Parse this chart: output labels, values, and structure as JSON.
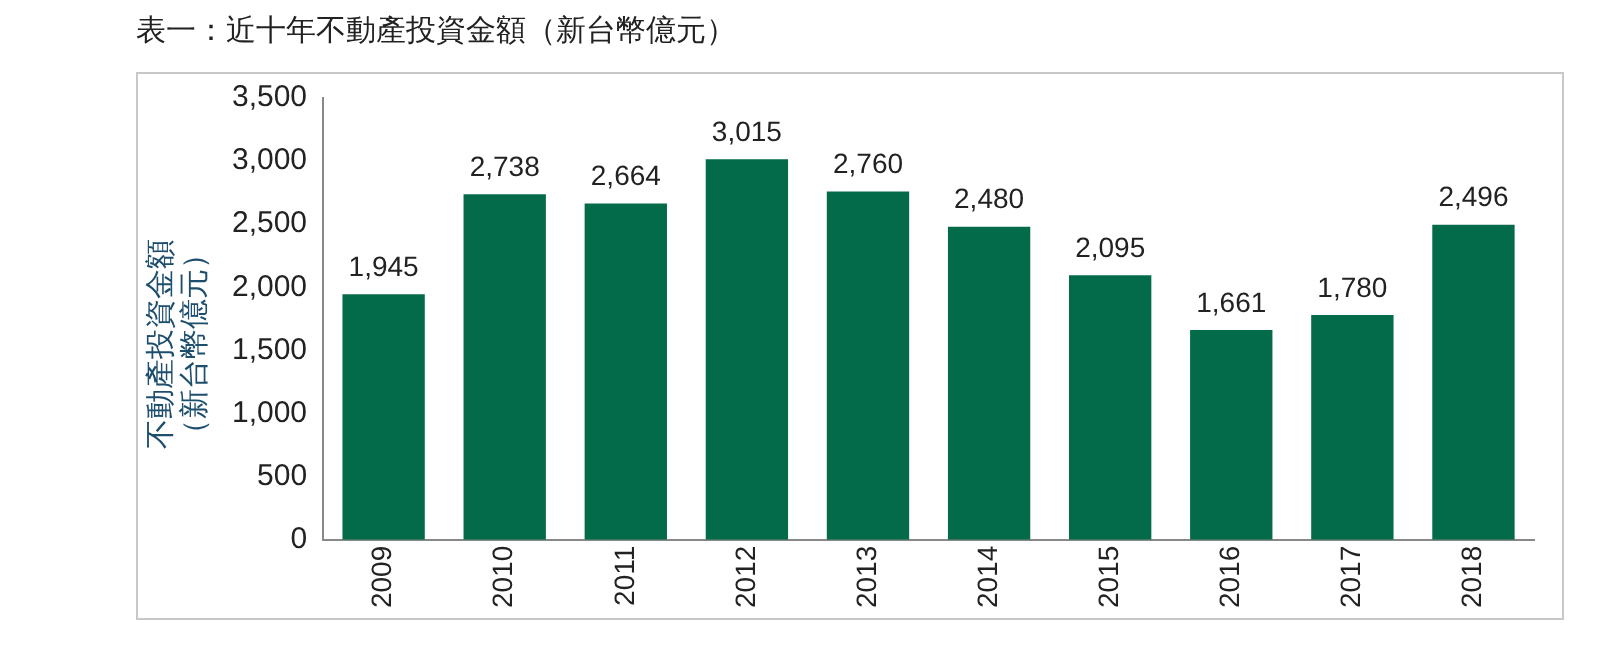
{
  "chart_data": {
    "type": "bar",
    "title": "表一：近十年不動產投資金額（新台幣億元）",
    "ylabel": "不動產投資金額（新台幣億元）",
    "categories": [
      "2009",
      "2010",
      "2011",
      "2012",
      "2013",
      "2014",
      "2015",
      "2016",
      "2017",
      "2018"
    ],
    "values": [
      1945,
      2738,
      2664,
      3015,
      2760,
      2480,
      2095,
      1661,
      1780,
      2496
    ],
    "color": "#046b4a",
    "ylim": [
      0,
      3500
    ],
    "yticks": [
      {
        "value": 0,
        "label": "0"
      },
      {
        "value": 500,
        "label": "500"
      },
      {
        "value": 1000,
        "label": "1,000"
      },
      {
        "value": 1500,
        "label": "1,500"
      },
      {
        "value": 2000,
        "label": "2,000"
      },
      {
        "value": 2500,
        "label": "2,500"
      },
      {
        "value": 3000,
        "label": "3,000"
      },
      {
        "value": 3500,
        "label": "3,500"
      }
    ],
    "value_labels": [
      "1,945",
      "2,738",
      "2,664",
      "3,015",
      "2,760",
      "2,480",
      "2,095",
      "1,661",
      "1,780",
      "2,496"
    ],
    "grid": false,
    "legend": false
  }
}
